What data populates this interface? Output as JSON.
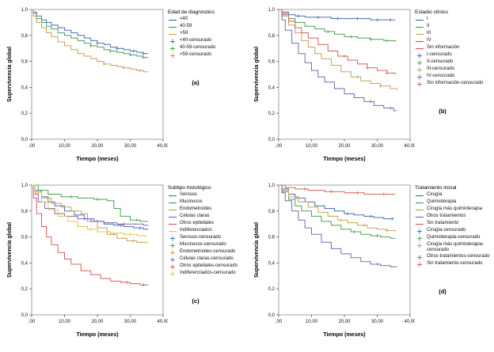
{
  "figure": {
    "background": "#ffffff",
    "tick_color": "#444444",
    "frame_color": "#7a7a7a"
  },
  "chart_data": [
    {
      "type": "line",
      "subtype": "step",
      "panel_label": "(a)",
      "legend_title": "Edad de diagnóstico",
      "xlabel": "Tiempo (meses)",
      "ylabel": "Supervivencia global",
      "xlim": [
        0,
        40
      ],
      "ylim": [
        0,
        1.0
      ],
      "xticks": {
        "values": [
          0,
          10,
          20,
          30,
          40
        ],
        "labels": [
          ",00",
          "10,00",
          "20,00",
          "30,00",
          "40,00"
        ]
      },
      "yticks": {
        "values": [
          0,
          0.2,
          0.4,
          0.6,
          0.8,
          1.0
        ],
        "labels": [
          "0,0",
          "0,2",
          "0,4",
          "0,6",
          "0,8",
          "1,0"
        ]
      },
      "series": [
        {
          "name": "<40",
          "censored_label": "<40-censurado",
          "color": "#4c6fb1",
          "x": [
            0,
            0.5,
            1.5,
            3,
            4.5,
            6,
            8,
            10,
            12,
            14,
            16,
            18,
            20,
            22,
            24,
            26,
            28,
            30,
            32,
            34,
            35.5
          ],
          "y": [
            1.0,
            0.98,
            0.95,
            0.92,
            0.9,
            0.88,
            0.86,
            0.84,
            0.82,
            0.8,
            0.78,
            0.76,
            0.74,
            0.73,
            0.71,
            0.7,
            0.69,
            0.68,
            0.67,
            0.66,
            0.66
          ],
          "censor_x": [
            20,
            26,
            31,
            34
          ]
        },
        {
          "name": "40-59",
          "censored_label": "40-59-censurado",
          "color": "#4fa058",
          "x": [
            0,
            0.5,
            1.5,
            3,
            4.5,
            6,
            8,
            10,
            12,
            14,
            16,
            18,
            20,
            22,
            24,
            26,
            28,
            30,
            32,
            34,
            35.5
          ],
          "y": [
            1.0,
            0.97,
            0.93,
            0.9,
            0.87,
            0.85,
            0.82,
            0.8,
            0.78,
            0.76,
            0.74,
            0.72,
            0.71,
            0.69,
            0.68,
            0.67,
            0.66,
            0.65,
            0.64,
            0.63,
            0.63
          ],
          "censor_x": [
            18,
            24,
            30,
            34
          ]
        },
        {
          "name": ">59",
          "censored_label": ">59-censurado",
          "color": "#c8a256",
          "x": [
            0,
            0.5,
            1.5,
            3,
            4.5,
            6,
            8,
            10,
            12,
            14,
            16,
            18,
            20,
            22,
            24,
            26,
            28,
            30,
            32,
            34,
            35.5
          ],
          "y": [
            1.0,
            0.95,
            0.9,
            0.86,
            0.82,
            0.79,
            0.75,
            0.72,
            0.69,
            0.66,
            0.64,
            0.62,
            0.6,
            0.58,
            0.57,
            0.56,
            0.55,
            0.54,
            0.53,
            0.52,
            0.52
          ],
          "censor_x": [
            22,
            28,
            33
          ]
        }
      ]
    },
    {
      "type": "line",
      "subtype": "step",
      "panel_label": "(b)",
      "legend_title": "Estadio clínico",
      "xlabel": "Tiempo (meses)",
      "ylabel": "Supervivencia global",
      "xlim": [
        0,
        40
      ],
      "ylim": [
        0,
        1.0
      ],
      "xticks": {
        "values": [
          0,
          10,
          20,
          30,
          40
        ],
        "labels": [
          ",00",
          "10,00",
          "20,00",
          "30,00",
          "40,00"
        ]
      },
      "yticks": {
        "values": [
          0,
          0.2,
          0.4,
          0.6,
          0.8,
          1.0
        ],
        "labels": [
          "0,0",
          "0,2",
          "0,4",
          "0,6",
          "0,8",
          "1,0"
        ]
      },
      "series": [
        {
          "name": "I",
          "censored_label": "I-censurado",
          "color": "#4c6fb1",
          "x": [
            0,
            1,
            3,
            5,
            8,
            12,
            16,
            20,
            24,
            28,
            32,
            35.5
          ],
          "y": [
            1.0,
            0.98,
            0.96,
            0.95,
            0.94,
            0.94,
            0.93,
            0.93,
            0.93,
            0.92,
            0.92,
            0.92
          ],
          "censor_x": [
            6,
            12,
            18,
            24,
            30,
            34
          ]
        },
        {
          "name": "II",
          "censored_label": "II-censurado",
          "color": "#4fa058",
          "x": [
            0,
            1,
            3,
            5,
            8,
            11,
            14,
            17,
            20,
            24,
            28,
            32,
            35.5
          ],
          "y": [
            1.0,
            0.97,
            0.93,
            0.9,
            0.87,
            0.85,
            0.83,
            0.81,
            0.79,
            0.78,
            0.77,
            0.76,
            0.75
          ],
          "censor_x": [
            15,
            22,
            28,
            33
          ]
        },
        {
          "name": "III",
          "censored_label": "III-censurado",
          "color": "#c8a256",
          "x": [
            0,
            1,
            3,
            5,
            7,
            9,
            11,
            13,
            16,
            19,
            22,
            25,
            28,
            31,
            34,
            36
          ],
          "y": [
            1.0,
            0.95,
            0.88,
            0.82,
            0.76,
            0.71,
            0.66,
            0.62,
            0.57,
            0.52,
            0.48,
            0.45,
            0.43,
            0.41,
            0.39,
            0.38
          ],
          "censor_x": [
            24,
            31
          ]
        },
        {
          "name": "IV",
          "censored_label": "IV-censurado",
          "color": "#7d6aae",
          "x": [
            0,
            1,
            2,
            4,
            6,
            8,
            10,
            12,
            14,
            17,
            20,
            23,
            26,
            29,
            32,
            35,
            36
          ],
          "y": [
            1.0,
            0.92,
            0.84,
            0.74,
            0.66,
            0.59,
            0.53,
            0.48,
            0.44,
            0.39,
            0.35,
            0.32,
            0.29,
            0.26,
            0.24,
            0.22,
            0.22
          ],
          "censor_x": [
            28,
            34
          ]
        },
        {
          "name": "Sin información",
          "censored_label": "Sin información-censurado",
          "color": "#d4605c",
          "x": [
            0,
            1,
            3,
            5,
            7,
            9,
            12,
            15,
            18,
            21,
            24,
            27,
            30,
            33,
            35.5
          ],
          "y": [
            1.0,
            0.96,
            0.91,
            0.86,
            0.82,
            0.78,
            0.73,
            0.68,
            0.64,
            0.61,
            0.58,
            0.55,
            0.53,
            0.51,
            0.5
          ],
          "censor_x": [
            20,
            27,
            33
          ]
        }
      ]
    },
    {
      "type": "line",
      "subtype": "step",
      "panel_label": "(c)",
      "legend_title": "Subtipo histológico",
      "xlabel": "Tiempo (meses)",
      "ylabel": "Supervivencia global",
      "xlim": [
        0,
        40
      ],
      "ylim": [
        0,
        1.0
      ],
      "xticks": {
        "values": [
          0,
          10,
          20,
          30,
          40
        ],
        "labels": [
          ",00",
          "10,00",
          "20,00",
          "30,00",
          "40,00"
        ]
      },
      "yticks": {
        "values": [
          0,
          0.2,
          0.4,
          0.6,
          0.8,
          1.0
        ],
        "labels": [
          "0,0",
          "0,2",
          "0,4",
          "0,6",
          "0,8",
          "1,0"
        ]
      },
      "series": [
        {
          "name": "Serosos",
          "censored_label": "Serosos-censurado",
          "color": "#4c6fb1",
          "x": [
            0,
            1,
            3,
            5,
            7,
            10,
            13,
            16,
            19,
            22,
            25,
            28,
            31,
            34,
            35.5
          ],
          "y": [
            1.0,
            0.96,
            0.91,
            0.87,
            0.84,
            0.8,
            0.77,
            0.74,
            0.72,
            0.7,
            0.69,
            0.68,
            0.67,
            0.66,
            0.66
          ],
          "censor_x": [
            20,
            27,
            33
          ]
        },
        {
          "name": "Mucinosos",
          "censored_label": "Mucinosos-censurado",
          "color": "#4fa058",
          "x": [
            0,
            2,
            5,
            9,
            14,
            19,
            23,
            25,
            27,
            30,
            33,
            35.5
          ],
          "y": [
            1.0,
            0.96,
            0.93,
            0.91,
            0.9,
            0.89,
            0.88,
            0.82,
            0.76,
            0.73,
            0.72,
            0.72
          ],
          "censor_x": [
            12,
            20,
            32
          ]
        },
        {
          "name": "Endometroides",
          "censored_label": "Endometroides-censurado",
          "color": "#c8a256",
          "x": [
            0,
            1,
            3,
            6,
            9,
            12,
            15,
            17,
            20,
            23,
            26,
            29,
            32,
            35
          ],
          "y": [
            1.0,
            0.95,
            0.9,
            0.86,
            0.83,
            0.8,
            0.78,
            0.72,
            0.67,
            0.62,
            0.59,
            0.57,
            0.56,
            0.55
          ],
          "censor_x": [
            25,
            31
          ]
        },
        {
          "name": "Células claras",
          "censored_label": "Células claras-censurado",
          "color": "#7d6aae",
          "x": [
            0,
            1,
            2,
            4,
            7,
            10,
            14,
            18,
            22,
            26,
            30,
            34,
            35.5
          ],
          "y": [
            1.0,
            0.93,
            0.87,
            0.82,
            0.78,
            0.76,
            0.74,
            0.72,
            0.71,
            0.7,
            0.7,
            0.69,
            0.69
          ],
          "censor_x": [
            16,
            28
          ]
        },
        {
          "name": "Otros epiteliales",
          "censored_label": "Otros epiteliales-censurado",
          "color": "#d4605c",
          "x": [
            0,
            0.5,
            1.5,
            3,
            4.5,
            6,
            8,
            10,
            12,
            15,
            18,
            21,
            24,
            27,
            30,
            33,
            35.5
          ],
          "y": [
            1.0,
            0.9,
            0.78,
            0.68,
            0.6,
            0.54,
            0.48,
            0.43,
            0.39,
            0.34,
            0.31,
            0.28,
            0.26,
            0.25,
            0.24,
            0.23,
            0.23
          ],
          "censor_x": [
            29,
            34
          ]
        },
        {
          "name": "Indiferenciados",
          "censored_label": "Indiferenciados-censurado",
          "color": "#dcc84e",
          "x": [
            0,
            1,
            3,
            5,
            8,
            11,
            14,
            17,
            20,
            24,
            28,
            32,
            35
          ],
          "y": [
            1.0,
            0.94,
            0.87,
            0.81,
            0.76,
            0.72,
            0.68,
            0.66,
            0.64,
            0.63,
            0.62,
            0.61,
            0.61
          ],
          "censor_x": [
            18,
            30
          ]
        }
      ]
    },
    {
      "type": "line",
      "subtype": "step",
      "panel_label": "(d)",
      "legend_title": "Tratamiento inicial",
      "xlabel": "Tiempo (meses)",
      "ylabel": "Supervivencia global",
      "xlim": [
        0,
        40
      ],
      "ylim": [
        0,
        1.0
      ],
      "xticks": {
        "values": [
          0,
          10,
          20,
          30,
          40
        ],
        "labels": [
          ",00",
          "10,00",
          "20,00",
          "30,00",
          "40,00"
        ]
      },
      "yticks": {
        "values": [
          0,
          0.2,
          0.4,
          0.6,
          0.8,
          1.0
        ],
        "labels": [
          "0,0",
          "0,2",
          "0,4",
          "0,6",
          "0,8",
          "1,0"
        ]
      },
      "series": [
        {
          "name": "Cirugía",
          "censored_label": "Cirugía-censurado",
          "color": "#4c6fb1",
          "x": [
            0,
            1,
            3,
            5,
            8,
            11,
            14,
            17,
            20,
            23,
            26,
            29,
            32,
            35
          ],
          "y": [
            1.0,
            0.97,
            0.93,
            0.9,
            0.87,
            0.84,
            0.82,
            0.8,
            0.78,
            0.77,
            0.76,
            0.75,
            0.74,
            0.74
          ],
          "censor_x": [
            21,
            28,
            34.5
          ]
        },
        {
          "name": "Quimioterapia",
          "censored_label": "Quimioterapia-censurado",
          "color": "#4fa058",
          "x": [
            0,
            1,
            3,
            5,
            7,
            10,
            13,
            16,
            19,
            22,
            25,
            28,
            31,
            34,
            35.5
          ],
          "y": [
            1.0,
            0.95,
            0.89,
            0.84,
            0.8,
            0.76,
            0.72,
            0.69,
            0.66,
            0.64,
            0.62,
            0.61,
            0.6,
            0.59,
            0.59
          ],
          "censor_x": [
            23,
            30
          ]
        },
        {
          "name": "Cirugía más quimioterapia",
          "censored_label": "Cirugía más quimioterapia-censurado",
          "color": "#c8a256",
          "x": [
            0,
            1,
            3,
            6,
            9,
            12,
            15,
            18,
            21,
            24,
            27,
            30,
            33,
            35.5
          ],
          "y": [
            1.0,
            0.96,
            0.91,
            0.87,
            0.83,
            0.79,
            0.76,
            0.73,
            0.71,
            0.69,
            0.67,
            0.66,
            0.65,
            0.64
          ],
          "censor_x": [
            19,
            26,
            33
          ]
        },
        {
          "name": "Otros tratamientos",
          "censored_label": "Otros tratamientos-censurado",
          "color": "#7d6aae",
          "x": [
            0,
            1,
            2,
            4,
            6,
            8,
            10,
            13,
            16,
            19,
            22,
            25,
            28,
            31,
            34,
            36
          ],
          "y": [
            1.0,
            0.94,
            0.88,
            0.8,
            0.73,
            0.67,
            0.62,
            0.56,
            0.51,
            0.47,
            0.44,
            0.41,
            0.39,
            0.38,
            0.37,
            0.37
          ],
          "censor_x": [
            30
          ]
        },
        {
          "name": "Sin tratamiento",
          "censored_label": "Sin tratamiento-censurado",
          "color": "#d4605c",
          "x": [
            0,
            2,
            5,
            9,
            14,
            20,
            26,
            31,
            35.5
          ],
          "y": [
            1.0,
            0.98,
            0.97,
            0.96,
            0.95,
            0.94,
            0.93,
            0.93,
            0.93
          ],
          "censor_x": [
            8,
            16,
            24,
            32
          ]
        }
      ]
    }
  ]
}
